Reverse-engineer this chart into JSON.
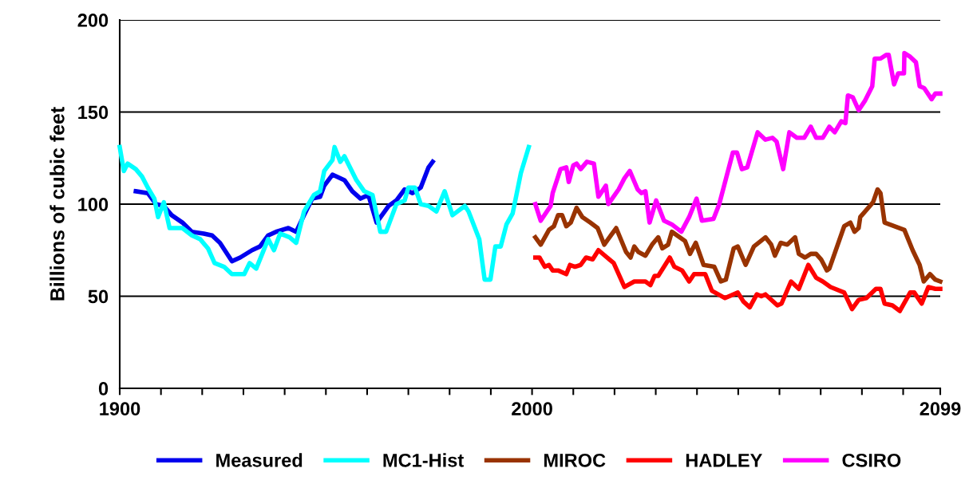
{
  "chart_data": {
    "type": "line",
    "ylabel": "Billions of cubic feet",
    "xlim": [
      1900,
      2099
    ],
    "ylim": [
      0,
      200
    ],
    "xticks": [
      1900,
      {
        "value": 1910,
        "label": null
      },
      {
        "value": 1920,
        "label": null
      },
      {
        "value": 1930,
        "label": null
      },
      {
        "value": 1940,
        "label": null
      },
      {
        "value": 1950,
        "label": null
      },
      {
        "value": 1960,
        "label": null
      },
      {
        "value": 1970,
        "label": null
      },
      {
        "value": 1980,
        "label": null
      },
      {
        "value": 1990,
        "label": null
      },
      2000,
      {
        "value": 2010,
        "label": null
      },
      {
        "value": 2020,
        "label": null
      },
      {
        "value": 2030,
        "label": null
      },
      {
        "value": 2040,
        "label": null
      },
      {
        "value": 2050,
        "label": null
      },
      {
        "value": 2060,
        "label": null
      },
      {
        "value": 2070,
        "label": null
      },
      {
        "value": 2080,
        "label": null
      },
      {
        "value": 2090,
        "label": null
      },
      2099
    ],
    "yticks": [
      0,
      50,
      100,
      150,
      200
    ],
    "grid": "y",
    "legend": "bottom",
    "line_style": "solid",
    "marker": "none",
    "series": [
      {
        "name": "Measured",
        "color": "#0000ee",
        "x": [
          1903.9,
          1906.8,
          1908.8,
          1910.7,
          1912.6,
          1915.2,
          1917.5,
          1920.4,
          1922.4,
          1924.3,
          1927.2,
          1929.2,
          1932.1,
          1934.0,
          1936.0,
          1937.9,
          1940.9,
          1942.8,
          1944.7,
          1946.7,
          1948.6,
          1949.6,
          1951.6,
          1954.5,
          1956.4,
          1958.4,
          1960.3,
          1962.3,
          1965.2,
          1967.1,
          1969.1,
          1971.0,
          1973.0,
          1974.9,
          1975.9
        ],
        "values": [
          107,
          106,
          100,
          99,
          94,
          90,
          85,
          84,
          83,
          79,
          69,
          71,
          75,
          77,
          83,
          85,
          87,
          85,
          94,
          103,
          104,
          110,
          116,
          113,
          107,
          103,
          105,
          90,
          99,
          102,
          108,
          106,
          109,
          120,
          123
        ]
      },
      {
        "name": "MC1-Hist",
        "color": "#00ffff",
        "x": [
          1900,
          1901.0,
          1901.9,
          1903.9,
          1905.4,
          1906.8,
          1908.4,
          1909.3,
          1910.7,
          1912.1,
          1913.2,
          1915.2,
          1917.5,
          1919.5,
          1921.4,
          1923.0,
          1925.3,
          1927.2,
          1930.2,
          1931.5,
          1933.1,
          1936.0,
          1937.4,
          1938.9,
          1941.2,
          1942.8,
          1944.7,
          1947.1,
          1948.6,
          1949.6,
          1951.6,
          1952.1,
          1953.5,
          1954.5,
          1957.4,
          1959.3,
          1961.3,
          1963.2,
          1964.6,
          1967.1,
          1969.1,
          1970.0,
          1971.6,
          1973.0,
          1974.9,
          1976.8,
          1978.8,
          1980.7,
          1983.7,
          1984.6,
          1987.2,
          1987.9,
          1988.5,
          1989.9,
          1991.1,
          1992.4,
          1993.8,
          1995.3,
          1997.3,
          1999.2
        ],
        "values": [
          131,
          118,
          122,
          119,
          115,
          109,
          103,
          93,
          101,
          87,
          87,
          87,
          83,
          81,
          76,
          68,
          66,
          62,
          62,
          68,
          65,
          81,
          75,
          84,
          82,
          79,
          96,
          105,
          107,
          118,
          124,
          131,
          123,
          126,
          113,
          107,
          105,
          85,
          85,
          100,
          102,
          109,
          109,
          100,
          99,
          96,
          107,
          94,
          99,
          96,
          81,
          69,
          59,
          59,
          77,
          77,
          89,
          95,
          117,
          131
        ]
      },
      {
        "name": "MIROC",
        "color": "#993300",
        "x": [
          2000.8,
          2002.1,
          2004.1,
          2005.3,
          2006.3,
          2007.3,
          2008.3,
          2009.4,
          2010.8,
          2012.2,
          2014.1,
          2015.9,
          2017.5,
          2020.4,
          2022.8,
          2023.9,
          2024.8,
          2025.8,
          2027.5,
          2029.1,
          2030.6,
          2031.6,
          2033.0,
          2033.9,
          2037.1,
          2038.3,
          2039.7,
          2041.6,
          2044.2,
          2045.8,
          2047.0,
          2048.9,
          2049.9,
          2051.8,
          2053.8,
          2056.6,
          2058.0,
          2058.9,
          2060.3,
          2061.9,
          2063.8,
          2064.7,
          2066.2,
          2067.6,
          2068.9,
          2070.1,
          2071.5,
          2072.1,
          2075.7,
          2077.2,
          2078.2,
          2079.2,
          2079.6,
          2082.7,
          2083.8,
          2084.5,
          2085.5,
          2090.3,
          2092.3,
          2094.0,
          2095.0,
          2096.5,
          2097.8,
          2099
        ],
        "values": [
          82,
          78,
          86,
          88,
          94,
          94,
          88,
          90,
          98,
          93,
          90,
          87,
          78,
          87,
          74,
          71,
          77,
          74,
          72,
          78,
          82,
          76,
          78,
          85,
          80,
          73,
          79,
          67,
          66,
          58,
          59,
          76,
          77,
          67,
          77,
          82,
          78,
          72,
          79,
          78,
          82,
          73,
          71,
          73,
          73,
          70,
          64,
          65,
          88,
          90,
          85,
          87,
          93,
          101,
          108,
          106,
          90,
          86,
          75,
          67,
          58,
          62,
          59,
          58
        ]
      },
      {
        "name": "HADLEY",
        "color": "#ff0000",
        "x": [
          2000.8,
          2001.8,
          2003.1,
          2004.1,
          2005.0,
          2006.3,
          2008.3,
          2009.2,
          2010.4,
          2011.8,
          2013.1,
          2014.7,
          2016.1,
          2019.8,
          2022.4,
          2024.8,
          2027.5,
          2028.7,
          2029.7,
          2030.6,
          2033.4,
          2034.5,
          2036.4,
          2038.1,
          2039.3,
          2042.0,
          2043.6,
          2046.8,
          2049.9,
          2051.3,
          2052.8,
          2054.5,
          2055.6,
          2056.6,
          2059.5,
          2060.5,
          2062.8,
          2064.7,
          2067.0,
          2068.9,
          2070.5,
          2072.4,
          2075.7,
          2077.6,
          2079.2,
          2081.1,
          2083.4,
          2084.5,
          2085.5,
          2087.4,
          2089.2,
          2091.7,
          2092.7,
          2094.5,
          2096.1,
          2097.8,
          2099
        ],
        "values": [
          71,
          71,
          66,
          67,
          64,
          64,
          62,
          67,
          66,
          67,
          71,
          70,
          75,
          68,
          55,
          58,
          58,
          56,
          61,
          61,
          71,
          66,
          64,
          58,
          62,
          62,
          53,
          49,
          52,
          47,
          44,
          51,
          50,
          51,
          45,
          46,
          58,
          54,
          67,
          60,
          58,
          55,
          52,
          43,
          48,
          49,
          54,
          54,
          46,
          45,
          42,
          52,
          52,
          46,
          55,
          54,
          54
        ]
      },
      {
        "name": "CSIRO",
        "color": "#ff00ff",
        "x": [
          2000.8,
          2002.1,
          2004.5,
          2005.0,
          2006.9,
          2008.3,
          2008.9,
          2010.0,
          2010.8,
          2011.8,
          2013.3,
          2015.0,
          2016.1,
          2017.9,
          2018.5,
          2021.0,
          2022.4,
          2023.7,
          2025.6,
          2026.5,
          2027.5,
          2028.5,
          2030.1,
          2032.0,
          2033.9,
          2036.2,
          2038.1,
          2039.9,
          2041.2,
          2044.0,
          2045.4,
          2048.7,
          2049.7,
          2050.9,
          2052.2,
          2054.7,
          2056.6,
          2058.3,
          2059.3,
          2060.9,
          2062.4,
          2064.2,
          2066.0,
          2067.6,
          2068.9,
          2070.5,
          2072.1,
          2073.4,
          2075.0,
          2076.0,
          2076.6,
          2077.8,
          2079.2,
          2080.7,
          2082.5,
          2083.1,
          2084.5,
          2085.9,
          2086.5,
          2087.8,
          2088.8,
          2090.2,
          2090.3,
          2091.7,
          2093.1,
          2094.0,
          2095.1,
          2096.9,
          2097.8,
          2099
        ],
        "values": [
          100,
          91,
          99,
          106,
          119,
          120,
          112,
          121,
          122,
          119,
          123,
          122,
          104,
          110,
          100,
          108,
          114,
          118,
          108,
          106,
          107,
          90,
          102,
          91,
          89,
          85,
          93,
          103,
          91,
          92,
          100,
          128,
          128,
          119,
          120,
          139,
          135,
          136,
          134,
          119,
          139,
          136,
          136,
          142,
          136,
          136,
          142,
          139,
          145,
          144,
          159,
          158,
          151,
          156,
          164,
          179,
          179,
          181,
          181,
          165,
          171,
          171,
          182,
          180,
          177,
          164,
          163,
          157,
          160,
          160
        ]
      }
    ]
  }
}
